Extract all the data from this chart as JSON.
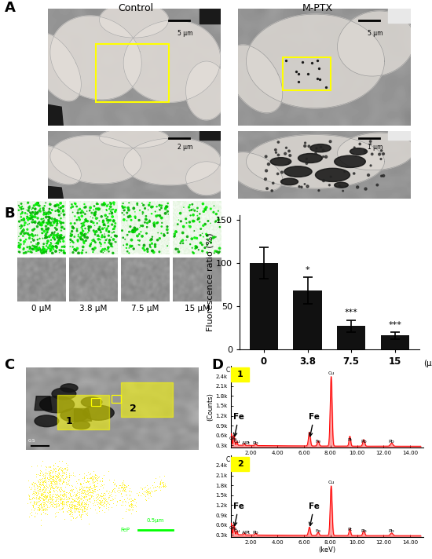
{
  "panel_label_fontsize": 13,
  "panel_label_weight": "bold",
  "bar_values": [
    100,
    68,
    27,
    16
  ],
  "bar_errors": [
    18,
    15,
    7,
    4
  ],
  "bar_categories": [
    "0",
    "3.8",
    "7.5",
    "15"
  ],
  "bar_xlabel": "(μM)",
  "bar_ylabel": "Fluorescence ratio (%)",
  "bar_yticks": [
    0,
    50,
    100,
    150
  ],
  "bar_ylim": [
    0,
    155
  ],
  "bar_color": "#111111",
  "significance_labels": [
    "",
    "*",
    "***",
    "***"
  ],
  "section_A_label": "A",
  "section_B_label": "B",
  "section_C_label": "C",
  "section_D_label": "D",
  "control_label": "Control",
  "mptx_label": "M-PTX",
  "scalebars": [
    "5 μm",
    "5 μm",
    "2 μm",
    "1 μm"
  ],
  "conc_labels": [
    "0 μM",
    "3.8 μM",
    "7.5 μM",
    "15 μM"
  ],
  "bg_color": "#ffffff",
  "yellow_box": "#ffff00",
  "eds_peak_positions": [
    0.28,
    0.52,
    0.71,
    0.93,
    1.49,
    2.35,
    6.4,
    7.06,
    8.04,
    9.45,
    10.5,
    12.6
  ],
  "eds_peak_heights_1": [
    2.1,
    0.35,
    0.3,
    0.12,
    0.06,
    0.06,
    0.42,
    0.15,
    2.1,
    0.3,
    0.2,
    0.1
  ],
  "eds_peak_heights_2": [
    2.1,
    0.35,
    0.3,
    0.12,
    0.06,
    0.06,
    0.25,
    0.1,
    1.5,
    0.2,
    0.15,
    0.08
  ],
  "eds_xlim": [
    0.5,
    15.0
  ],
  "eds_ylim": [
    0.25,
    2.7
  ],
  "eds_xticks": [
    2,
    4,
    6,
    8,
    10,
    12,
    14
  ],
  "eds_ytick_vals": [
    0.3,
    0.6,
    0.9,
    1.2,
    1.5,
    1.8,
    2.1,
    2.4
  ]
}
